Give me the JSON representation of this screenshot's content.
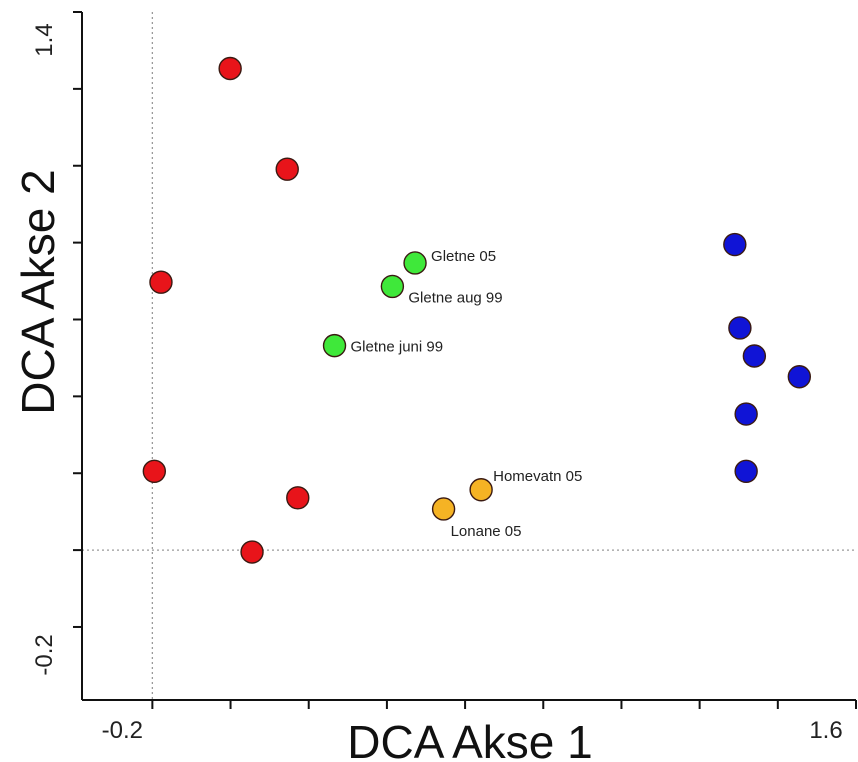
{
  "chart_data": {
    "type": "scatter",
    "title": "",
    "xlabel": "DCA Akse 1",
    "ylabel": "DCA Akse 2",
    "xlim": [
      -0.38,
      1.6
    ],
    "ylim": [
      -0.39,
      1.4
    ],
    "x_tick_labels": [
      {
        "value": -0.2,
        "label": "-0.2"
      },
      {
        "value": 1.6,
        "label": "1.6"
      }
    ],
    "y_tick_labels": [
      {
        "value": 1.4,
        "label": "1.4"
      },
      {
        "value": -0.2,
        "label": "-0.2"
      }
    ],
    "x_ticks": [
      -0.2,
      0.0,
      0.2,
      0.4,
      0.6,
      0.8,
      1.0,
      1.2,
      1.4,
      1.6
    ],
    "y_ticks": [
      -0.2,
      0.0,
      0.2,
      0.4,
      0.6,
      0.8,
      1.0,
      1.2,
      1.4
    ],
    "zero_lines": {
      "x": -0.2,
      "y": 0.0
    },
    "legend": "none",
    "grid": false,
    "series": [
      {
        "color": "#e8141a",
        "points": [
          {
            "x": -0.001,
            "y": 1.253,
            "label": ""
          },
          {
            "x": 0.145,
            "y": 0.991,
            "label": ""
          },
          {
            "x": -0.178,
            "y": 0.697,
            "label": ""
          },
          {
            "x": -0.195,
            "y": 0.205,
            "label": ""
          },
          {
            "x": 0.172,
            "y": 0.136,
            "label": ""
          },
          {
            "x": 0.055,
            "y": -0.005,
            "label": ""
          }
        ]
      },
      {
        "color": "#3fe83a",
        "points": [
          {
            "x": 0.472,
            "y": 0.747,
            "label": "Gletne 05"
          },
          {
            "x": 0.414,
            "y": 0.686,
            "label": "Gletne aug 99"
          },
          {
            "x": 0.266,
            "y": 0.532,
            "label": "Gletne juni 99"
          }
        ]
      },
      {
        "color": "#f5b324",
        "points": [
          {
            "x": 0.641,
            "y": 0.157,
            "label": "Homevatn 05"
          },
          {
            "x": 0.545,
            "y": 0.107,
            "label": "Lonane 05"
          }
        ]
      },
      {
        "color": "#1014d6",
        "points": [
          {
            "x": 1.29,
            "y": 0.795,
            "label": ""
          },
          {
            "x": 1.303,
            "y": 0.578,
            "label": ""
          },
          {
            "x": 1.34,
            "y": 0.505,
            "label": ""
          },
          {
            "x": 1.455,
            "y": 0.451,
            "label": ""
          },
          {
            "x": 1.319,
            "y": 0.354,
            "label": ""
          },
          {
            "x": 1.319,
            "y": 0.205,
            "label": ""
          }
        ]
      }
    ]
  }
}
